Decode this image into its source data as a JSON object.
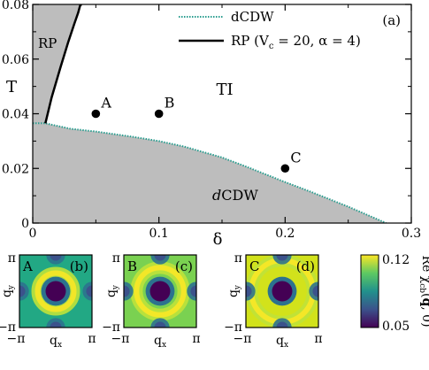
{
  "chart_data": [
    {
      "type": "area",
      "panel_label": "(a)",
      "xlabel": "δ",
      "ylabel": "T",
      "xlim": [
        0,
        0.3
      ],
      "ylim": [
        0,
        0.08
      ],
      "xticks": [
        {
          "v": 0,
          "label": "0"
        },
        {
          "v": 0.1,
          "label": "0.1"
        },
        {
          "v": 0.2,
          "label": "0.2"
        },
        {
          "v": 0.3,
          "label": "0.3"
        }
      ],
      "yticks": [
        {
          "v": 0,
          "label": "0"
        },
        {
          "v": 0.02,
          "label": "0.02"
        },
        {
          "v": 0.04,
          "label": "0.04"
        },
        {
          "v": 0.06,
          "label": "0.06"
        },
        {
          "v": 0.08,
          "label": "0.08"
        }
      ],
      "legend": {
        "placement": "top-center",
        "entries": [
          {
            "label": "dCDW",
            "style": "dotted",
            "color": "#2a9d8f"
          },
          {
            "label": "RP (V",
            "sub": "c",
            "label2": " = 20, α = 4)",
            "style": "solid",
            "color": "#000000"
          }
        ]
      },
      "regions": [
        {
          "label": "RP",
          "color": "#bdbdbd"
        },
        {
          "label": "TI",
          "color": "#ffffff"
        },
        {
          "label_italic": "d",
          "label": "CDW",
          "color": "#bdbdbd"
        }
      ],
      "series": [
        {
          "name": "dCDW",
          "x": [
            0.0,
            0.01,
            0.03,
            0.05,
            0.08,
            0.1,
            0.12,
            0.15,
            0.17,
            0.2,
            0.22,
            0.25,
            0.27,
            0.28
          ],
          "y": [
            0.0365,
            0.0365,
            0.0345,
            0.0335,
            0.0315,
            0.03,
            0.028,
            0.024,
            0.0205,
            0.015,
            0.0115,
            0.006,
            0.002,
            0.0
          ]
        },
        {
          "name": "RP (Vc = 20, α = 4)",
          "x": [
            0.01,
            0.015,
            0.022,
            0.028,
            0.033,
            0.036,
            0.0375,
            0.0385
          ],
          "y": [
            0.0365,
            0.046,
            0.057,
            0.066,
            0.073,
            0.077,
            0.0795,
            0.08
          ]
        }
      ],
      "points": [
        {
          "label": "A",
          "x": 0.05,
          "y": 0.04
        },
        {
          "label": "B",
          "x": 0.1,
          "y": 0.04
        },
        {
          "label": "C",
          "x": 0.2,
          "y": 0.02
        }
      ],
      "grid": false
    },
    {
      "type": "heatmap",
      "panels": [
        {
          "point": "A",
          "tag": "(b)",
          "ring": 0.5,
          "background": "#22a884"
        },
        {
          "point": "B",
          "tag": "(c)",
          "ring": 0.65,
          "background": "#7ad151"
        },
        {
          "point": "C",
          "tag": "(d)",
          "ring": 0.85,
          "background": "#d2e21b"
        }
      ],
      "xlabel": "q",
      "xlabel_sub": "x",
      "ylabel": "q",
      "ylabel_sub": "y",
      "tick_min": "−π",
      "tick_max": "π",
      "colorbar": {
        "min": 0.05,
        "max": 0.12,
        "min_label": "0.05",
        "max_label": "0.12",
        "label_pre": "Re χ",
        "label_sub": "cb",
        "label_bold": "q",
        "label_post": ", 0)",
        "colormap": "viridis"
      }
    }
  ]
}
